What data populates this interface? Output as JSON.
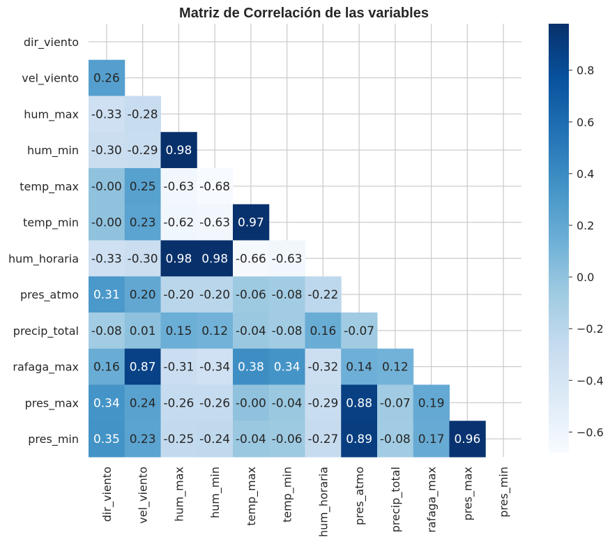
{
  "chart_data": {
    "type": "heatmap",
    "title": "Matriz de Correlación de las variables",
    "labels": [
      "dir_viento",
      "vel_viento",
      "hum_max",
      "hum_min",
      "temp_max",
      "temp_min",
      "hum_horaria",
      "pres_atmo",
      "precip_total",
      "rafaga_max",
      "pres_max",
      "pres_min"
    ],
    "mask": "upper-triangle-including-diagonal",
    "matrix": [
      [
        null,
        null,
        null,
        null,
        null,
        null,
        null,
        null,
        null,
        null,
        null,
        null
      ],
      [
        0.26,
        null,
        null,
        null,
        null,
        null,
        null,
        null,
        null,
        null,
        null,
        null
      ],
      [
        -0.33,
        -0.28,
        null,
        null,
        null,
        null,
        null,
        null,
        null,
        null,
        null,
        null
      ],
      [
        -0.3,
        -0.29,
        0.98,
        null,
        null,
        null,
        null,
        null,
        null,
        null,
        null,
        null
      ],
      [
        -0.0,
        0.25,
        -0.63,
        -0.68,
        null,
        null,
        null,
        null,
        null,
        null,
        null,
        null
      ],
      [
        -0.0,
        0.23,
        -0.62,
        -0.63,
        0.97,
        null,
        null,
        null,
        null,
        null,
        null,
        null
      ],
      [
        -0.33,
        -0.3,
        0.98,
        0.98,
        -0.66,
        -0.63,
        null,
        null,
        null,
        null,
        null,
        null
      ],
      [
        0.31,
        0.2,
        -0.2,
        -0.2,
        -0.06,
        -0.08,
        -0.22,
        null,
        null,
        null,
        null,
        null
      ],
      [
        -0.08,
        0.01,
        0.15,
        0.12,
        -0.04,
        -0.08,
        0.16,
        -0.07,
        null,
        null,
        null,
        null
      ],
      [
        0.16,
        0.87,
        -0.31,
        -0.34,
        0.38,
        0.34,
        -0.32,
        0.14,
        0.12,
        null,
        null,
        null
      ],
      [
        0.34,
        0.24,
        -0.26,
        -0.26,
        -0.0,
        -0.04,
        -0.29,
        0.88,
        -0.07,
        0.19,
        null,
        null
      ],
      [
        0.35,
        0.23,
        -0.25,
        -0.24,
        -0.04,
        -0.06,
        -0.27,
        0.89,
        -0.08,
        0.17,
        0.96,
        null
      ]
    ],
    "colormap": "Blues",
    "vmin": -0.68,
    "vmax": 0.98,
    "grid": true,
    "colorbar": {
      "ticks": [
        0.8,
        0.6,
        0.4,
        0.2,
        0.0,
        -0.2,
        -0.4,
        -0.6
      ],
      "tick_labels": [
        "0.8",
        "0.6",
        "0.4",
        "0.2",
        "0.0",
        "−0.2",
        "−0.4",
        "−0.6"
      ]
    }
  }
}
